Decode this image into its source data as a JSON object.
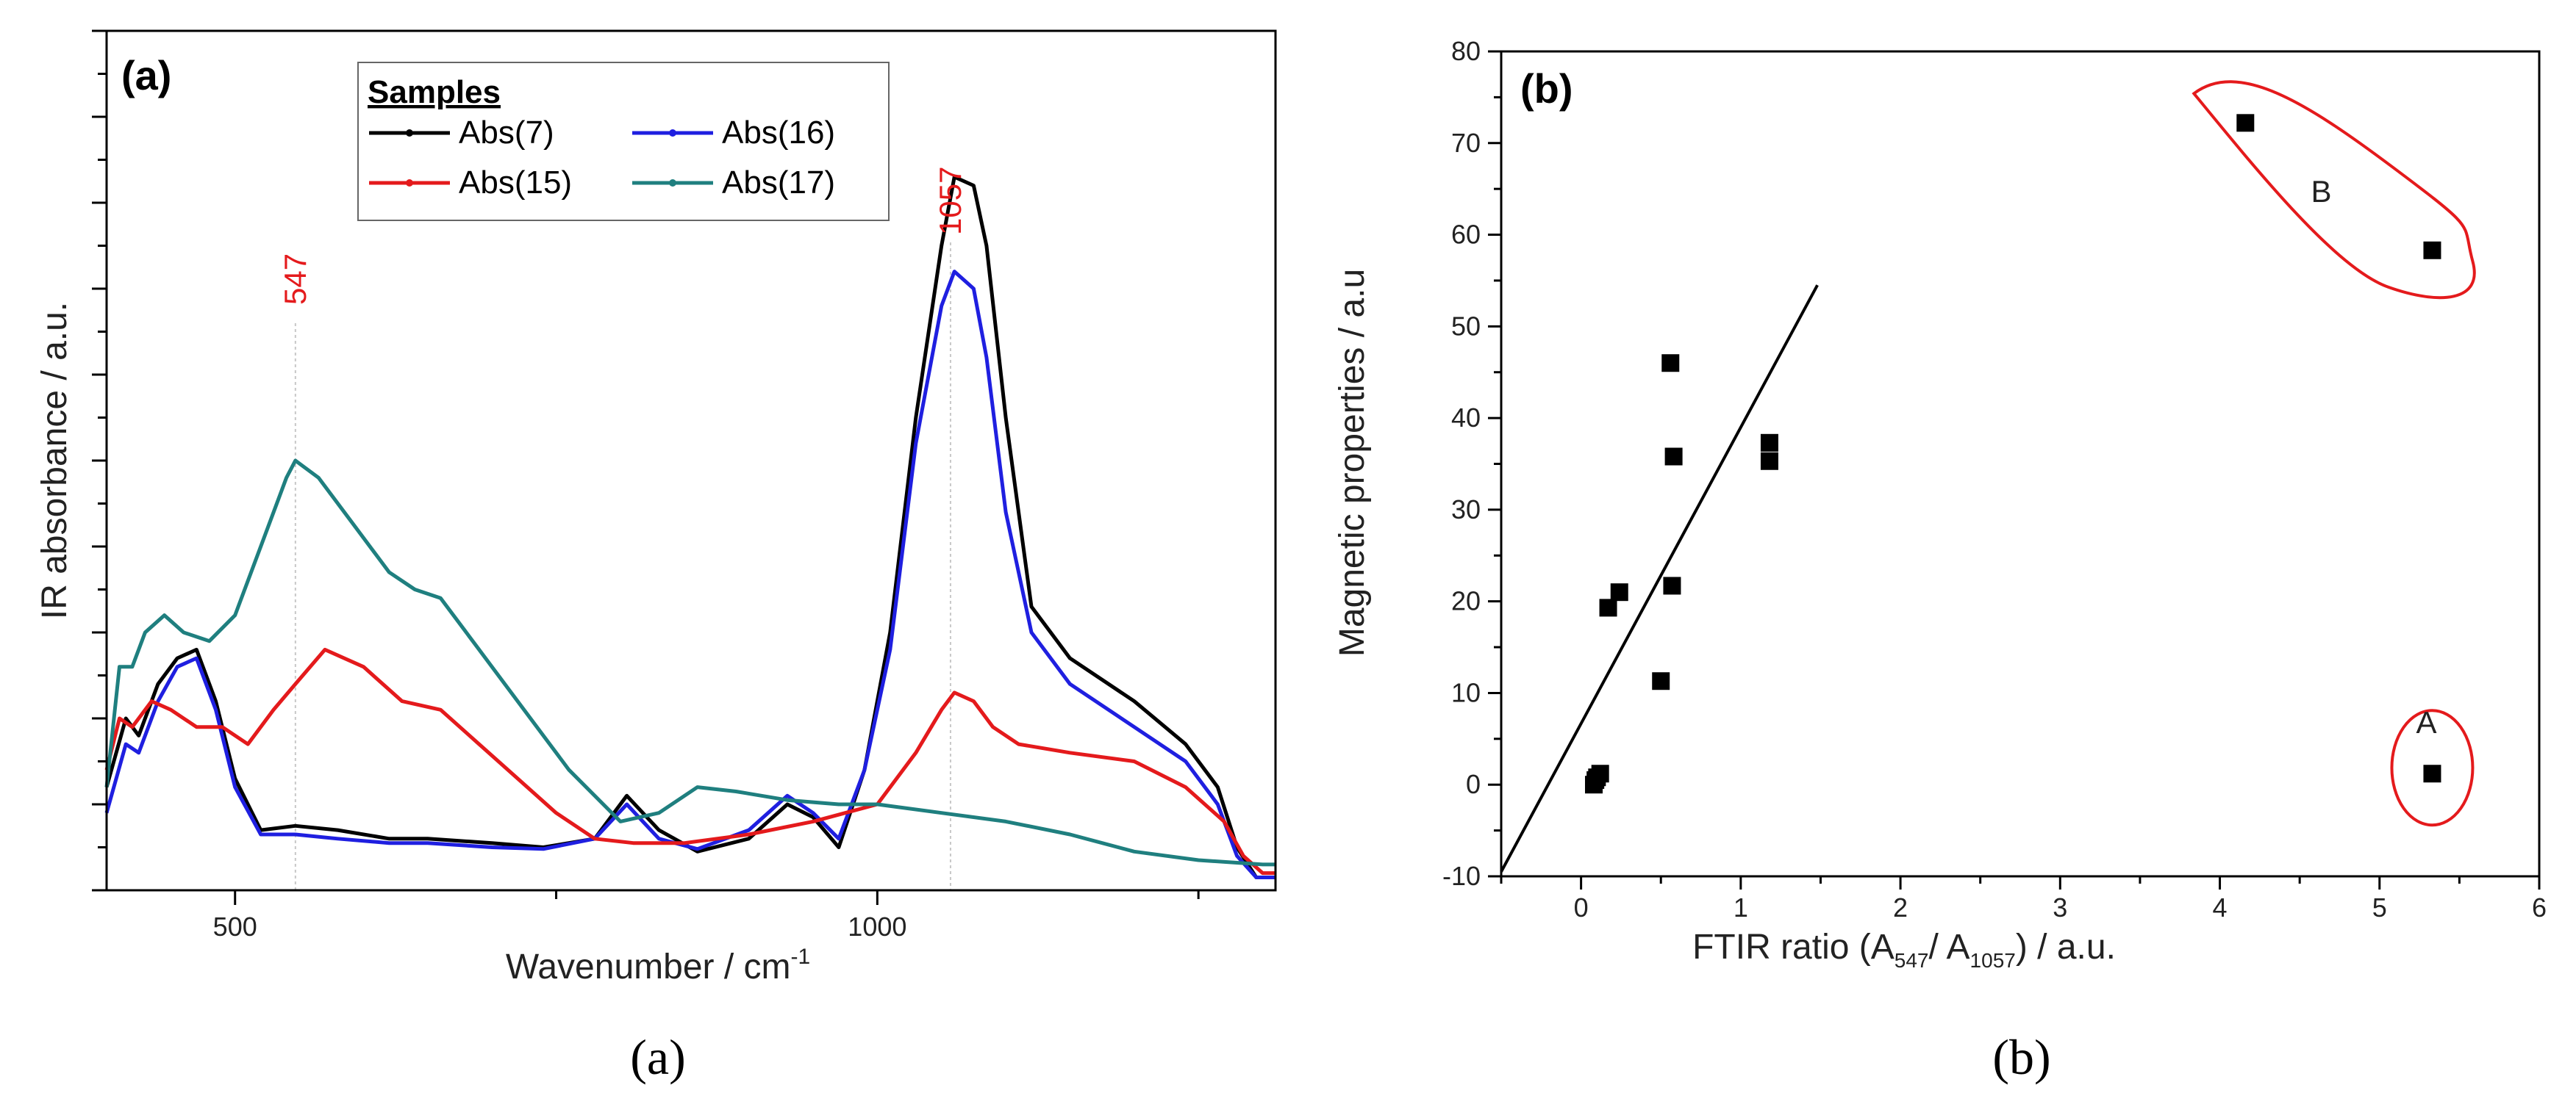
{
  "figure": {
    "caption_a": "(a)",
    "caption_b": "(b)"
  },
  "colors": {
    "abs7": "#000000",
    "abs15": "#e41a1c",
    "abs16": "#1f1fe0",
    "abs17": "#1f7f7f",
    "annotation": "#e41a1c",
    "axis": "#000000"
  },
  "chart_data": [
    {
      "type": "line",
      "panel_label": "(a)",
      "title": "",
      "xlabel": "Wavenumber / cm",
      "xlabel_sup": "-1",
      "ylabel": "IR absorbance / a.u.",
      "xlim": [
        400,
        1310
      ],
      "ylim": [
        0,
        100
      ],
      "x_ticks": [
        500,
        1000
      ],
      "x_tick_labels": [
        "500",
        "1000"
      ],
      "y_ticks_unlabeled": true,
      "legend_title": "Samples",
      "legend_position": "top-center",
      "annotations": [
        {
          "text": "547",
          "x": 547
        },
        {
          "text": "1057",
          "x": 1057
        }
      ],
      "series": [
        {
          "name": "Abs(7)",
          "color_key": "abs7",
          "points": [
            [
              400,
              12
            ],
            [
              415,
              20
            ],
            [
              425,
              18
            ],
            [
              440,
              24
            ],
            [
              455,
              27
            ],
            [
              470,
              28
            ],
            [
              485,
              22
            ],
            [
              500,
              13
            ],
            [
              520,
              7
            ],
            [
              547,
              7.5
            ],
            [
              580,
              7
            ],
            [
              620,
              6
            ],
            [
              650,
              6
            ],
            [
              700,
              5.5
            ],
            [
              740,
              5
            ],
            [
              780,
              6
            ],
            [
              805,
              11
            ],
            [
              830,
              7
            ],
            [
              860,
              4.5
            ],
            [
              900,
              6
            ],
            [
              930,
              10
            ],
            [
              950,
              8.5
            ],
            [
              970,
              5
            ],
            [
              990,
              14
            ],
            [
              1010,
              30
            ],
            [
              1030,
              55
            ],
            [
              1050,
              75
            ],
            [
              1060,
              83
            ],
            [
              1075,
              82
            ],
            [
              1085,
              75
            ],
            [
              1100,
              55
            ],
            [
              1120,
              33
            ],
            [
              1150,
              27
            ],
            [
              1200,
              22
            ],
            [
              1240,
              17
            ],
            [
              1265,
              12
            ],
            [
              1280,
              5
            ],
            [
              1295,
              1.5
            ],
            [
              1310,
              1.5
            ]
          ]
        },
        {
          "name": "Abs(16)",
          "color_key": "abs16",
          "points": [
            [
              400,
              9
            ],
            [
              415,
              17
            ],
            [
              425,
              16
            ],
            [
              440,
              22
            ],
            [
              455,
              26
            ],
            [
              470,
              27
            ],
            [
              485,
              21
            ],
            [
              500,
              12
            ],
            [
              520,
              6.5
            ],
            [
              547,
              6.5
            ],
            [
              580,
              6
            ],
            [
              620,
              5.5
            ],
            [
              650,
              5.5
            ],
            [
              700,
              5
            ],
            [
              740,
              4.8
            ],
            [
              780,
              6
            ],
            [
              805,
              10
            ],
            [
              830,
              6
            ],
            [
              860,
              4.8
            ],
            [
              900,
              7
            ],
            [
              930,
              11
            ],
            [
              950,
              9
            ],
            [
              970,
              6
            ],
            [
              990,
              14
            ],
            [
              1010,
              28
            ],
            [
              1030,
              52
            ],
            [
              1050,
              68
            ],
            [
              1060,
              72
            ],
            [
              1075,
              70
            ],
            [
              1085,
              62
            ],
            [
              1100,
              44
            ],
            [
              1120,
              30
            ],
            [
              1150,
              24
            ],
            [
              1200,
              19
            ],
            [
              1240,
              15
            ],
            [
              1265,
              10
            ],
            [
              1280,
              4
            ],
            [
              1295,
              1.5
            ],
            [
              1310,
              1.5
            ]
          ]
        },
        {
          "name": "Abs(15)",
          "color_key": "abs15",
          "points": [
            [
              400,
              14
            ],
            [
              410,
              20
            ],
            [
              420,
              19
            ],
            [
              435,
              22
            ],
            [
              450,
              21
            ],
            [
              470,
              19
            ],
            [
              490,
              19
            ],
            [
              510,
              17
            ],
            [
              530,
              21
            ],
            [
              547,
              24
            ],
            [
              570,
              28
            ],
            [
              600,
              26
            ],
            [
              630,
              22
            ],
            [
              660,
              21
            ],
            [
              690,
              17
            ],
            [
              720,
              13
            ],
            [
              750,
              9
            ],
            [
              780,
              6
            ],
            [
              810,
              5.5
            ],
            [
              850,
              5.5
            ],
            [
              900,
              6.5
            ],
            [
              950,
              8
            ],
            [
              1000,
              10
            ],
            [
              1030,
              16
            ],
            [
              1050,
              21
            ],
            [
              1060,
              23
            ],
            [
              1075,
              22
            ],
            [
              1090,
              19
            ],
            [
              1110,
              17
            ],
            [
              1150,
              16
            ],
            [
              1200,
              15
            ],
            [
              1240,
              12
            ],
            [
              1270,
              8
            ],
            [
              1285,
              4
            ],
            [
              1300,
              2
            ],
            [
              1310,
              2
            ]
          ]
        },
        {
          "name": "Abs(17)",
          "color_key": "abs17",
          "points": [
            [
              400,
              12
            ],
            [
              410,
              26
            ],
            [
              420,
              26
            ],
            [
              430,
              30
            ],
            [
              445,
              32
            ],
            [
              460,
              30
            ],
            [
              480,
              29
            ],
            [
              500,
              32
            ],
            [
              520,
              40
            ],
            [
              540,
              48
            ],
            [
              547,
              50
            ],
            [
              565,
              48
            ],
            [
              590,
              43
            ],
            [
              620,
              37
            ],
            [
              640,
              35
            ],
            [
              660,
              34
            ],
            [
              690,
              28
            ],
            [
              720,
              22
            ],
            [
              760,
              14
            ],
            [
              800,
              8
            ],
            [
              830,
              9
            ],
            [
              860,
              12
            ],
            [
              890,
              11.5
            ],
            [
              930,
              10.5
            ],
            [
              970,
              10
            ],
            [
              1000,
              10
            ],
            [
              1050,
              9
            ],
            [
              1100,
              8
            ],
            [
              1150,
              6.5
            ],
            [
              1200,
              4.5
            ],
            [
              1250,
              3.5
            ],
            [
              1300,
              3
            ],
            [
              1310,
              3
            ]
          ]
        }
      ]
    },
    {
      "type": "scatter",
      "panel_label": "(b)",
      "title": "",
      "xlabel": "FTIR ratio (A",
      "xlabel_sub1": "547",
      "xlabel_mid": "/ A",
      "xlabel_sub2": "1057",
      "xlabel_end": ") / a.u.",
      "ylabel": "Magnetic properties / a.u",
      "xlim": [
        -0.5,
        6
      ],
      "ylim": [
        -10,
        80
      ],
      "x_ticks": [
        0,
        1,
        2,
        3,
        4,
        5,
        6
      ],
      "x_tick_labels": [
        "0",
        "1",
        "2",
        "3",
        "4",
        "5",
        "6"
      ],
      "y_ticks": [
        -10,
        0,
        10,
        20,
        30,
        40,
        50,
        60,
        70,
        80
      ],
      "y_tick_labels": [
        "-10",
        "0",
        "10",
        "20",
        "30",
        "40",
        "50",
        "60",
        "70",
        "80"
      ],
      "points": [
        [
          0.08,
          0
        ],
        [
          0.09,
          0.5
        ],
        [
          0.12,
          1.2
        ],
        [
          0.1,
          0.8
        ],
        [
          0.17,
          19.3
        ],
        [
          0.24,
          21
        ],
        [
          0.5,
          11.3
        ],
        [
          0.56,
          46
        ],
        [
          0.58,
          35.8
        ],
        [
          0.57,
          21.7
        ],
        [
          1.18,
          35.3
        ],
        [
          1.18,
          37.3
        ],
        [
          4.16,
          72.2
        ],
        [
          5.33,
          58.3
        ],
        [
          5.33,
          1.2
        ]
      ],
      "fit_line": {
        "x": [
          -0.5,
          1.48
        ],
        "y": [
          -9.5,
          54.5
        ]
      },
      "groups": [
        {
          "label": "A",
          "center": [
            5.33,
            1.2
          ]
        },
        {
          "label": "B",
          "center": [
            4.75,
            65
          ]
        }
      ]
    }
  ]
}
